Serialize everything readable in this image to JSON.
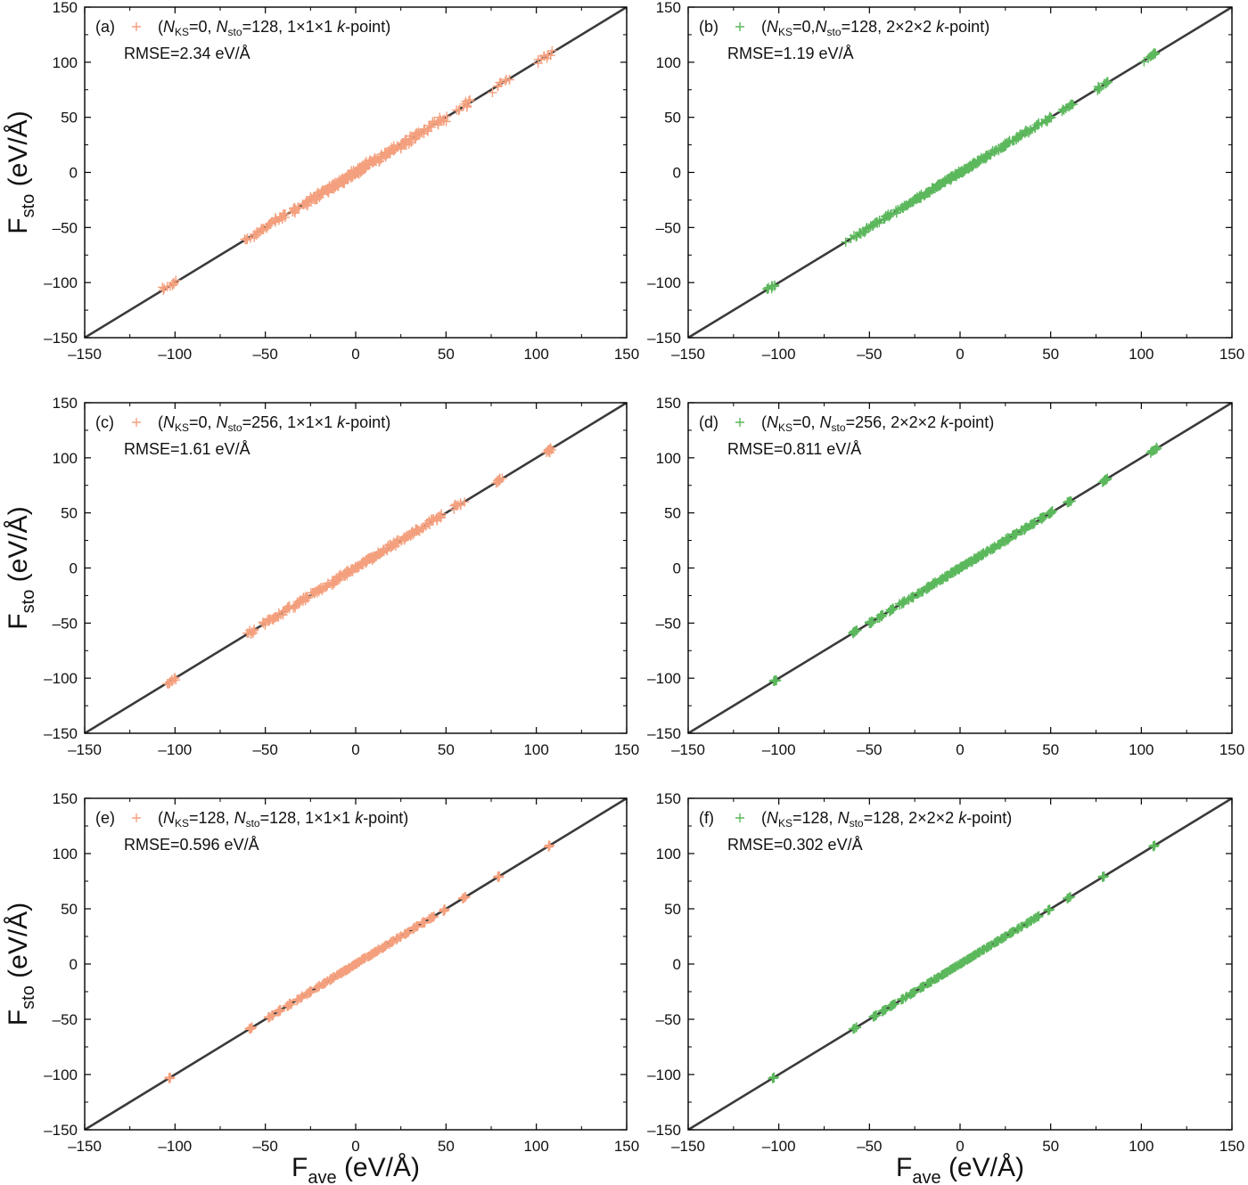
{
  "figure": {
    "ylabel": {
      "main": "F",
      "sub": "sto",
      "unit": " (eV/Å)"
    },
    "xlabel": {
      "main": "F",
      "sub": "ave",
      "unit": " (eV/Å)"
    }
  },
  "chart_data": [
    {
      "type": "scatter",
      "panel": "(a)",
      "marker": "+",
      "color": "#f4a07e",
      "xlim": [
        -150,
        150
      ],
      "ylim": [
        -150,
        150
      ],
      "xticks": [
        -150,
        -100,
        -50,
        0,
        50,
        100,
        150
      ],
      "yticks": [
        -150,
        -100,
        -50,
        0,
        50,
        100,
        150
      ],
      "legend": {
        "pre": "(",
        "n1": "N",
        "s1": "KS",
        "a": "=0, ",
        "n2": "N",
        "s2": "sto",
        "b": "=128, 1×1×1 ",
        "k": "k",
        "c": "-point)"
      },
      "rmse": "RMSE=2.34 eV/Å",
      "reference_line": {
        "x": [
          -150,
          150
        ],
        "y": [
          -150,
          150
        ]
      },
      "clusters": [
        [
          -104,
          4.5
        ],
        [
          -59,
          4.5
        ],
        [
          -52,
          3
        ],
        [
          -46,
          2.5
        ],
        [
          -40,
          2.5
        ],
        [
          -33,
          2.5
        ],
        [
          -28,
          2.5
        ],
        [
          -24,
          2.5
        ],
        [
          -20,
          2.5
        ],
        [
          -17,
          2.5
        ],
        [
          -14,
          2
        ],
        [
          -11,
          2
        ],
        [
          -8,
          2
        ],
        [
          -6,
          2
        ],
        [
          -4,
          2
        ],
        [
          -2,
          2
        ],
        [
          0,
          2
        ],
        [
          2,
          2
        ],
        [
          4,
          2
        ],
        [
          6,
          2
        ],
        [
          9,
          2
        ],
        [
          12,
          2.5
        ],
        [
          15,
          2.5
        ],
        [
          19,
          2.5
        ],
        [
          23,
          2.5
        ],
        [
          27,
          2.5
        ],
        [
          32,
          2.5
        ],
        [
          36,
          2.5
        ],
        [
          41,
          3
        ],
        [
          48,
          3
        ],
        [
          59,
          4.5
        ],
        [
          80,
          5.5
        ],
        [
          105,
          4.5
        ]
      ],
      "spread": 2.34
    },
    {
      "type": "scatter",
      "panel": "(b)",
      "marker": "+",
      "color": "#5cb85c",
      "xlim": [
        -150,
        150
      ],
      "ylim": [
        -150,
        150
      ],
      "xticks": [
        -150,
        -100,
        -50,
        0,
        50,
        100,
        150
      ],
      "yticks": [
        -150,
        -100,
        -50,
        0,
        50,
        100,
        150
      ],
      "legend": {
        "pre": "(",
        "n1": "N",
        "s1": "KS",
        "a": "=0,",
        "n2": "N",
        "s2": "sto",
        "b": "=128, 2×2×2 ",
        "k": "k",
        "c": "-point)"
      },
      "rmse": "RMSE=1.19 eV/Å",
      "reference_line": {
        "x": [
          -150,
          150
        ],
        "y": [
          -150,
          150
        ]
      },
      "clusters": [
        [
          -104,
          3
        ],
        [
          -59,
          5
        ],
        [
          -52,
          3
        ],
        [
          -46,
          2.5
        ],
        [
          -40,
          2.5
        ],
        [
          -33,
          2.5
        ],
        [
          -28,
          2.5
        ],
        [
          -24,
          2.5
        ],
        [
          -20,
          2.5
        ],
        [
          -17,
          2.5
        ],
        [
          -14,
          2
        ],
        [
          -11,
          2
        ],
        [
          -8,
          2
        ],
        [
          -6,
          2
        ],
        [
          -4,
          2
        ],
        [
          -2,
          2
        ],
        [
          0,
          2
        ],
        [
          2,
          2
        ],
        [
          4,
          2
        ],
        [
          6,
          2
        ],
        [
          9,
          2
        ],
        [
          12,
          2.5
        ],
        [
          15,
          2.5
        ],
        [
          19,
          2.5
        ],
        [
          23,
          2.5
        ],
        [
          27,
          2.5
        ],
        [
          32,
          2.5
        ],
        [
          36,
          2.5
        ],
        [
          41,
          3
        ],
        [
          48,
          3
        ],
        [
          59,
          3.5
        ],
        [
          80,
          4.5
        ],
        [
          105,
          3.5
        ]
      ],
      "spread": 1.19
    },
    {
      "type": "scatter",
      "panel": "(c)",
      "marker": "+",
      "color": "#f4a07e",
      "xlim": [
        -150,
        150
      ],
      "ylim": [
        -150,
        150
      ],
      "xticks": [
        -150,
        -100,
        -50,
        0,
        50,
        100,
        150
      ],
      "yticks": [
        -150,
        -100,
        -50,
        0,
        50,
        100,
        150
      ],
      "legend": {
        "pre": "(",
        "n1": "N",
        "s1": "KS",
        "a": "=0, ",
        "n2": "N",
        "s2": "sto",
        "b": "=256, 1×1×1 ",
        "k": "k",
        "c": "-point)"
      },
      "rmse": "RMSE=1.61 eV/Å",
      "reference_line": {
        "x": [
          -150,
          150
        ],
        "y": [
          -150,
          150
        ]
      },
      "clusters": [
        [
          -102,
          3
        ],
        [
          -58,
          2.5
        ],
        [
          -49,
          2.5
        ],
        [
          -44,
          2.5
        ],
        [
          -38,
          2.5
        ],
        [
          -32,
          2.5
        ],
        [
          -27,
          2.5
        ],
        [
          -22,
          2
        ],
        [
          -18,
          2
        ],
        [
          -14,
          2
        ],
        [
          -10,
          2
        ],
        [
          -7,
          2
        ],
        [
          -4,
          2
        ],
        [
          -1,
          2
        ],
        [
          2,
          2
        ],
        [
          5,
          2
        ],
        [
          8,
          2
        ],
        [
          11,
          2
        ],
        [
          14,
          2
        ],
        [
          18,
          2
        ],
        [
          22,
          2
        ],
        [
          26,
          2.5
        ],
        [
          30,
          2.5
        ],
        [
          35,
          2.5
        ],
        [
          40,
          2.5
        ],
        [
          45,
          2.5
        ],
        [
          57,
          3.5
        ],
        [
          79,
          2.5
        ],
        [
          107,
          1.5
        ]
      ],
      "spread": 1.61
    },
    {
      "type": "scatter",
      "panel": "(d)",
      "marker": "+",
      "color": "#5cb85c",
      "xlim": [
        -150,
        150
      ],
      "ylim": [
        -150,
        150
      ],
      "xticks": [
        -150,
        -100,
        -50,
        0,
        50,
        100,
        150
      ],
      "yticks": [
        -150,
        -100,
        -50,
        0,
        50,
        100,
        150
      ],
      "legend": {
        "pre": "(",
        "n1": "N",
        "s1": "KS",
        "a": "=0, ",
        "n2": "N",
        "s2": "sto",
        "b": "=256, 2×2×2 ",
        "k": "k",
        "c": "-point)"
      },
      "rmse": "RMSE=0.811 eV/Å",
      "reference_line": {
        "x": [
          -150,
          150
        ],
        "y": [
          -150,
          150
        ]
      },
      "clusters": [
        [
          -102,
          1
        ],
        [
          -58,
          1.5
        ],
        [
          -49,
          1.5
        ],
        [
          -44,
          1.5
        ],
        [
          -38,
          1.5
        ],
        [
          -32,
          1.5
        ],
        [
          -27,
          1.5
        ],
        [
          -22,
          1.5
        ],
        [
          -18,
          1.5
        ],
        [
          -14,
          1.5
        ],
        [
          -10,
          1.5
        ],
        [
          -7,
          1.5
        ],
        [
          -4,
          1.5
        ],
        [
          -1,
          1.5
        ],
        [
          2,
          1.5
        ],
        [
          5,
          1.5
        ],
        [
          8,
          1.5
        ],
        [
          11,
          1.5
        ],
        [
          14,
          1.5
        ],
        [
          18,
          1.5
        ],
        [
          22,
          1.5
        ],
        [
          26,
          1.5
        ],
        [
          30,
          1.5
        ],
        [
          35,
          1.5
        ],
        [
          40,
          1.5
        ],
        [
          45,
          1.5
        ],
        [
          50,
          1
        ],
        [
          60,
          1.5
        ],
        [
          80,
          1.5
        ],
        [
          107,
          2
        ]
      ],
      "spread": 0.811
    },
    {
      "type": "scatter",
      "panel": "(e)",
      "marker": "+",
      "color": "#f4a07e",
      "xlim": [
        -150,
        150
      ],
      "ylim": [
        -150,
        150
      ],
      "xticks": [
        -150,
        -100,
        -50,
        0,
        50,
        100,
        150
      ],
      "yticks": [
        -150,
        -100,
        -50,
        0,
        50,
        100,
        150
      ],
      "legend": {
        "pre": "(",
        "n1": "N",
        "s1": "KS",
        "a": "=128, ",
        "n2": "N",
        "s2": "sto",
        "b": "=128, 1×1×1 ",
        "k": "k",
        "c": "-point)"
      },
      "rmse": "RMSE=0.596 eV/Å",
      "reference_line": {
        "x": [
          -150,
          150
        ],
        "y": [
          -150,
          150
        ]
      },
      "clusters": [
        [
          -103,
          0.5
        ],
        [
          -58,
          1
        ],
        [
          -47,
          1.5
        ],
        [
          -42,
          1
        ],
        [
          -37,
          1.5
        ],
        [
          -31,
          1.5
        ],
        [
          -26,
          1.5
        ],
        [
          -21,
          1.5
        ],
        [
          -17,
          1.5
        ],
        [
          -13,
          1.5
        ],
        [
          -9,
          1.5
        ],
        [
          -6,
          1.5
        ],
        [
          -3,
          1.5
        ],
        [
          0,
          1.5
        ],
        [
          3,
          1.5
        ],
        [
          6,
          1.5
        ],
        [
          9,
          1.5
        ],
        [
          12,
          1.5
        ],
        [
          16,
          1.5
        ],
        [
          20,
          1.5
        ],
        [
          24,
          1.5
        ],
        [
          28,
          1.5
        ],
        [
          33,
          1.5
        ],
        [
          38,
          1.5
        ],
        [
          42,
          1.5
        ],
        [
          49,
          0.5
        ],
        [
          60,
          1
        ],
        [
          79,
          0.5
        ],
        [
          107,
          0.5
        ]
      ],
      "spread": 0.596
    },
    {
      "type": "scatter",
      "panel": "(f)",
      "marker": "+",
      "color": "#5cb85c",
      "xlim": [
        -150,
        150
      ],
      "ylim": [
        -150,
        150
      ],
      "xticks": [
        -150,
        -100,
        -50,
        0,
        50,
        100,
        150
      ],
      "yticks": [
        -150,
        -100,
        -50,
        0,
        50,
        100,
        150
      ],
      "legend": {
        "pre": "(",
        "n1": "N",
        "s1": "KS",
        "a": "=128, ",
        "n2": "N",
        "s2": "sto",
        "b": "=128, 2×2×2 ",
        "k": "k",
        "c": "-point)"
      },
      "rmse": "RMSE=0.302 eV/Å",
      "reference_line": {
        "x": [
          -150,
          150
        ],
        "y": [
          -150,
          150
        ]
      },
      "clusters": [
        [
          -103,
          0.5
        ],
        [
          -58,
          1
        ],
        [
          -47,
          1
        ],
        [
          -42,
          1
        ],
        [
          -37,
          1.5
        ],
        [
          -31,
          1.5
        ],
        [
          -26,
          1.5
        ],
        [
          -21,
          1.5
        ],
        [
          -17,
          1.5
        ],
        [
          -13,
          1.5
        ],
        [
          -9,
          1.5
        ],
        [
          -6,
          1.5
        ],
        [
          -3,
          1.5
        ],
        [
          0,
          1.5
        ],
        [
          3,
          1.5
        ],
        [
          6,
          1.5
        ],
        [
          9,
          1.5
        ],
        [
          12,
          1.5
        ],
        [
          16,
          1.5
        ],
        [
          20,
          1.5
        ],
        [
          24,
          1.5
        ],
        [
          28,
          1.5
        ],
        [
          33,
          1.5
        ],
        [
          38,
          1.5
        ],
        [
          42,
          1.5
        ],
        [
          49,
          0.5
        ],
        [
          60,
          1
        ],
        [
          79,
          0.5
        ],
        [
          107,
          0.5
        ]
      ],
      "spread": 0.302
    }
  ]
}
